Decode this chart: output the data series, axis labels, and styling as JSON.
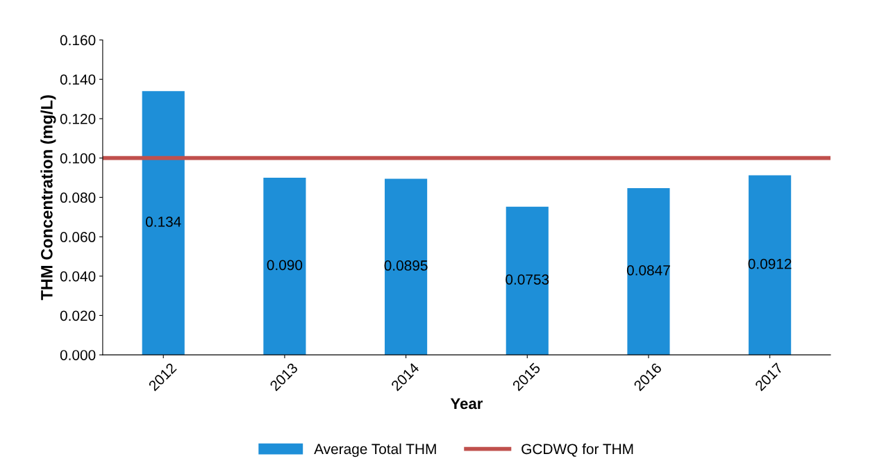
{
  "chart_data": {
    "type": "bar",
    "xlabel": "Year",
    "ylabel": "THM Concentration (mg/L)",
    "categories": [
      "2012",
      "2013",
      "2014",
      "2015",
      "2016",
      "2017"
    ],
    "series": [
      {
        "name": "Average Total THM",
        "color": "#1e8fd8",
        "values": [
          0.134,
          0.09,
          0.0895,
          0.0753,
          0.0847,
          0.0912
        ],
        "value_labels": [
          "0.134",
          "0.090",
          "0.0895",
          "0.0753",
          "0.0847",
          "0.0912"
        ]
      }
    ],
    "ylim": [
      0,
      0.16
    ],
    "yticks": [
      {
        "value": 0,
        "label": "0.000"
      },
      {
        "value": 0.02,
        "label": "0.020"
      },
      {
        "value": 0.04,
        "label": "0.040"
      },
      {
        "value": 0.06,
        "label": "0.060"
      },
      {
        "value": 0.08,
        "label": "0.080"
      },
      {
        "value": 0.1,
        "label": "0.100"
      },
      {
        "value": 0.12,
        "label": "0.120"
      },
      {
        "value": 0.14,
        "label": "0.140"
      },
      {
        "value": 0.16,
        "label": "0.160"
      }
    ],
    "ref_lines": [
      {
        "axis": "y",
        "value": 0.1,
        "label": "GCDWQ for THM",
        "color": "#c0504d",
        "line_style": "solid"
      }
    ],
    "legend": "bottom",
    "grid": false
  }
}
